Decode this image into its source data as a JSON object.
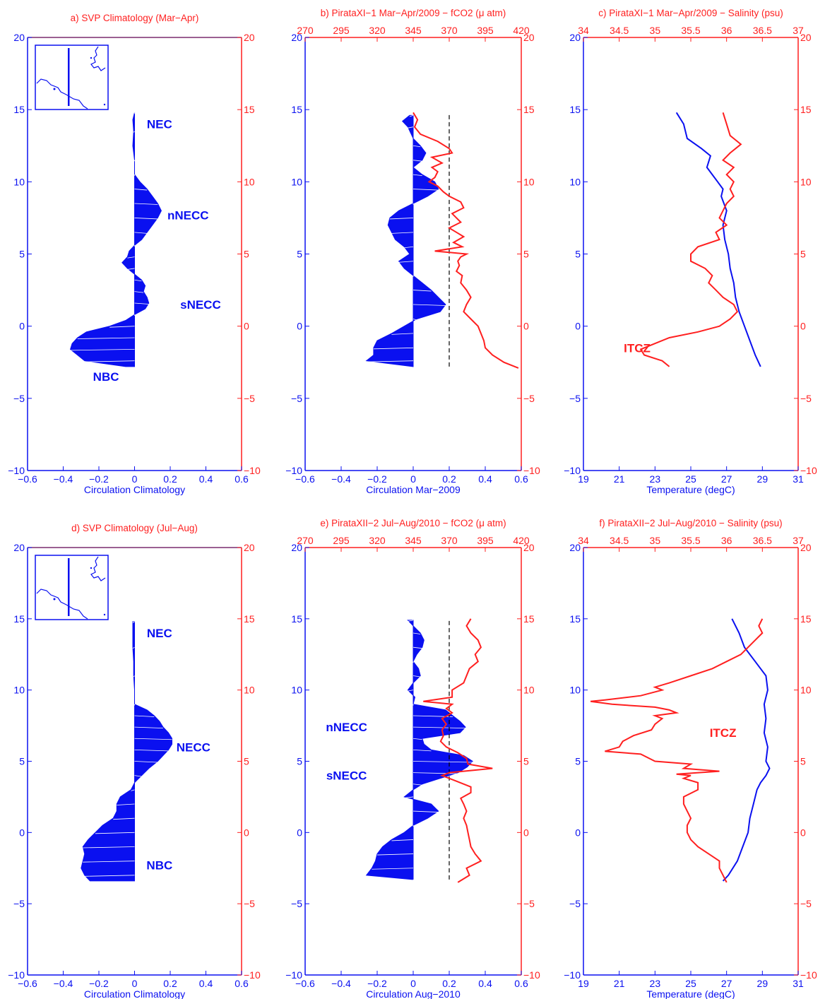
{
  "colors": {
    "blue": "#0a10f0",
    "red": "#ff1f1f",
    "frame": "#7a2b6e",
    "black": "#000000"
  },
  "chart_data": [
    {
      "id": "a",
      "type": "area",
      "title": "a) SVP Climatology (Mar−Apr)",
      "xlabel": "Circulation Climatology",
      "xlim": [
        -0.6,
        0.6
      ],
      "xticks": [
        "−0.6",
        "−0.4",
        "−0.2",
        "0",
        "0.2",
        "0.4",
        "0.6"
      ],
      "ylim": [
        -10,
        20
      ],
      "yticks": [
        "−10",
        "−5",
        "0",
        "5",
        "10",
        "15",
        "20"
      ],
      "inset_map": true,
      "circulation": {
        "lat": [
          14.8,
          14.3,
          13.5,
          12.5,
          11.5,
          11.0,
          10.5,
          10.0,
          9.5,
          9.0,
          8.5,
          8.0,
          7.5,
          7.0,
          6.5,
          6.0,
          5.6,
          5.2,
          4.8,
          4.4,
          4.0,
          3.6,
          3.2,
          2.8,
          2.4,
          2.0,
          1.6,
          1.2,
          0.8,
          0.4,
          0.0,
          -0.4,
          -0.8,
          -1.2,
          -1.6,
          -2.0,
          -2.4,
          -2.8
        ],
        "value": [
          0.0,
          -0.01,
          -0.005,
          -0.01,
          0.0,
          0.0,
          0.0,
          0.03,
          0.07,
          0.1,
          0.13,
          0.15,
          0.13,
          0.1,
          0.07,
          0.04,
          0.0,
          -0.03,
          -0.04,
          -0.07,
          -0.04,
          0.0,
          0.04,
          0.06,
          0.05,
          0.07,
          0.08,
          0.06,
          0.0,
          -0.05,
          -0.14,
          -0.27,
          -0.32,
          -0.35,
          -0.36,
          -0.32,
          -0.28,
          -0.05
        ]
      },
      "annotations": [
        {
          "text": "NEC",
          "x": 0.14,
          "y": 14.0
        },
        {
          "text": "nNECC",
          "x": 0.3,
          "y": 7.7
        },
        {
          "text": "sNECC",
          "x": 0.37,
          "y": 1.5
        },
        {
          "text": "NBC",
          "x": -0.16,
          "y": -3.5
        }
      ]
    },
    {
      "id": "b",
      "type": "area",
      "title": "b) PirataXI−1 Mar−Apr/2009 − fCO2 (μ atm)",
      "xlabel": "Circulation Mar−2009",
      "xlim": [
        -0.6,
        0.6
      ],
      "xticks": [
        "−0.6",
        "−0.4",
        "−0.2",
        "0",
        "0.2",
        "0.4",
        "0.6"
      ],
      "top_xlim": [
        270,
        420
      ],
      "top_xticks": [
        "270",
        "295",
        "320",
        "345",
        "370",
        "395",
        "420"
      ],
      "ylim": [
        -10,
        20
      ],
      "yticks": [
        "−10",
        "−5",
        "0",
        "5",
        "10",
        "15",
        "20"
      ],
      "dashed_x": 370,
      "dashed_yrange": [
        -2.8,
        14.8
      ],
      "circulation": {
        "lat": [
          14.6,
          14.2,
          13.8,
          13.0,
          12.5,
          12.0,
          11.5,
          11.0,
          10.5,
          10.0,
          9.5,
          9.0,
          8.5,
          8.0,
          7.5,
          7.0,
          6.5,
          6.0,
          5.5,
          5.0,
          4.5,
          4.0,
          3.5,
          3.0,
          2.5,
          2.0,
          1.5,
          1.0,
          0.5,
          0.0,
          -0.5,
          -1.0,
          -1.5,
          -2.0,
          -2.4,
          -2.8
        ],
        "value": [
          -0.02,
          -0.06,
          -0.03,
          0.0,
          0.04,
          0.07,
          0.05,
          0.0,
          0.05,
          0.12,
          0.14,
          0.08,
          0.0,
          -0.08,
          -0.13,
          -0.14,
          -0.12,
          -0.1,
          -0.05,
          -0.02,
          -0.08,
          -0.05,
          0.0,
          0.05,
          0.1,
          0.14,
          0.18,
          0.15,
          0.02,
          -0.05,
          -0.12,
          -0.2,
          -0.22,
          -0.22,
          -0.26,
          0.0
        ]
      },
      "fco2": {
        "lat": [
          14.8,
          14.3,
          13.8,
          13.3,
          12.8,
          12.3,
          12.0,
          11.7,
          11.3,
          11.0,
          10.7,
          10.3,
          10.0,
          9.7,
          9.3,
          9.0,
          8.6,
          8.2,
          7.8,
          7.5,
          7.2,
          6.8,
          6.5,
          6.2,
          5.8,
          5.5,
          5.2,
          5.0,
          4.8,
          4.5,
          4.2,
          3.8,
          3.5,
          3.0,
          2.5,
          2.0,
          1.5,
          1.0,
          0.5,
          0.0,
          -0.5,
          -1.0,
          -1.5,
          -2.0,
          -2.5,
          -2.9
        ],
        "value": [
          345,
          348,
          346,
          350,
          362,
          370,
          372,
          358,
          365,
          358,
          362,
          360,
          356,
          362,
          366,
          370,
          378,
          380,
          372,
          375,
          378,
          370,
          375,
          380,
          373,
          379,
          360,
          382,
          378,
          376,
          377,
          375,
          379,
          378,
          382,
          385,
          382,
          380,
          385,
          390,
          392,
          394,
          395,
          400,
          408,
          418
        ]
      }
    },
    {
      "id": "c",
      "type": "line",
      "title": "c) PirataXI−1 Mar−Apr/2009 − Salinity (psu)",
      "xlabel": "Temperature (degC)",
      "xlim": [
        19,
        31
      ],
      "xticks": [
        "19",
        "21",
        "23",
        "25",
        "27",
        "29",
        "31"
      ],
      "top_xlim": [
        34,
        37
      ],
      "top_xticks": [
        "34",
        "34.5",
        "35",
        "35.5",
        "36",
        "36.5",
        "37"
      ],
      "ylim": [
        -10,
        20
      ],
      "yticks": [
        "−10",
        "−5",
        "0",
        "5",
        "10",
        "15",
        "20"
      ],
      "temperature": {
        "lat": [
          14.8,
          14.0,
          13.0,
          12.3,
          11.8,
          11.0,
          10.5,
          10.0,
          9.5,
          9.0,
          8.0,
          7.0,
          6.0,
          5.0,
          4.0,
          3.0,
          2.0,
          1.0,
          0.0,
          -1.0,
          -2.0,
          -2.8
        ],
        "value": [
          24.2,
          24.6,
          24.8,
          25.6,
          26.1,
          25.9,
          26.2,
          26.5,
          26.8,
          26.7,
          27.0,
          26.8,
          26.9,
          27.1,
          27.2,
          27.4,
          27.5,
          27.7,
          28.0,
          28.3,
          28.6,
          28.9
        ]
      },
      "salinity": {
        "lat": [
          14.8,
          14.0,
          13.2,
          12.6,
          12.0,
          11.5,
          11.0,
          10.5,
          10.0,
          9.5,
          9.0,
          8.5,
          8.0,
          7.5,
          7.0,
          6.5,
          6.0,
          5.5,
          5.0,
          4.5,
          4.0,
          3.5,
          3.0,
          2.5,
          2.0,
          1.5,
          1.0,
          0.5,
          0.0,
          -0.4,
          -0.8,
          -1.2,
          -1.6,
          -2.0,
          -2.4,
          -2.8
        ],
        "value": [
          35.95,
          36.0,
          36.05,
          36.2,
          36.05,
          35.95,
          36.1,
          36.0,
          36.1,
          36.05,
          36.1,
          36.0,
          35.95,
          35.9,
          36.0,
          35.85,
          35.9,
          35.6,
          35.5,
          35.5,
          35.7,
          35.8,
          35.75,
          35.85,
          35.95,
          36.1,
          36.15,
          36.05,
          35.9,
          35.6,
          35.2,
          35.0,
          34.8,
          34.85,
          35.1,
          35.2
        ]
      },
      "annotations": [
        {
          "text": "ITCZ",
          "x": 34.75,
          "y": -1.5
        }
      ]
    },
    {
      "id": "d",
      "type": "area",
      "title": "d) SVP Climatology (Jul−Aug)",
      "xlabel": "Circulation Climatology",
      "xlim": [
        -0.6,
        0.6
      ],
      "xticks": [
        "−0.6",
        "−0.4",
        "−0.2",
        "0",
        "0.2",
        "0.4",
        "0.6"
      ],
      "ylim": [
        -10,
        20
      ],
      "yticks": [
        "−10",
        "−5",
        "0",
        "5",
        "10",
        "15",
        "20"
      ],
      "inset_map": true,
      "circulation": {
        "lat": [
          14.8,
          14.0,
          13.0,
          12.0,
          11.0,
          10.0,
          9.0,
          8.6,
          8.2,
          7.8,
          7.4,
          7.0,
          6.6,
          6.2,
          5.8,
          5.4,
          5.0,
          4.5,
          4.0,
          3.5,
          3.0,
          2.5,
          2.0,
          1.5,
          1.0,
          0.5,
          0.0,
          -0.5,
          -1.0,
          -1.5,
          -2.0,
          -2.5,
          -3.0,
          -3.4
        ],
        "value": [
          -0.01,
          -0.01,
          -0.01,
          -0.005,
          -0.005,
          0.0,
          0.0,
          0.07,
          0.11,
          0.14,
          0.16,
          0.19,
          0.21,
          0.21,
          0.19,
          0.16,
          0.13,
          0.08,
          0.04,
          0.0,
          -0.02,
          -0.08,
          -0.1,
          -0.1,
          -0.12,
          -0.18,
          -0.22,
          -0.26,
          -0.29,
          -0.28,
          -0.29,
          -0.3,
          -0.28,
          -0.25
        ]
      },
      "annotations": [
        {
          "text": "NEC",
          "x": 0.14,
          "y": 14.0
        },
        {
          "text": "NECC",
          "x": 0.33,
          "y": 6.0
        },
        {
          "text": "NBC",
          "x": 0.14,
          "y": -2.3
        }
      ]
    },
    {
      "id": "e",
      "type": "area",
      "title": "e) PirataXII−2 Jul−Aug/2010 − fCO2 (μ atm)",
      "xlabel": "Circulation Aug−2010",
      "xlim": [
        -0.6,
        0.6
      ],
      "xticks": [
        "−0.6",
        "−0.4",
        "−0.2",
        "0",
        "0.2",
        "0.4",
        "0.6"
      ],
      "top_xlim": [
        270,
        420
      ],
      "top_xticks": [
        "270",
        "295",
        "320",
        "345",
        "370",
        "395",
        "420"
      ],
      "ylim": [
        -10,
        20
      ],
      "yticks": [
        "−10",
        "−5",
        "0",
        "5",
        "10",
        "15",
        "20"
      ],
      "dashed_x": 370,
      "dashed_yrange": [
        -3.3,
        14.9
      ],
      "circulation": {
        "lat": [
          14.9,
          14.5,
          14.0,
          13.5,
          13.0,
          12.5,
          12.0,
          11.5,
          11.0,
          10.5,
          10.0,
          9.5,
          9.0,
          8.6,
          8.2,
          7.8,
          7.4,
          7.0,
          6.6,
          6.2,
          5.8,
          5.4,
          5.0,
          4.6,
          4.2,
          3.8,
          3.4,
          3.0,
          2.5,
          2.0,
          1.5,
          1.0,
          0.5,
          0.0,
          -0.5,
          -1.0,
          -1.5,
          -2.0,
          -2.5,
          -3.0,
          -3.3
        ],
        "value": [
          -0.03,
          0.0,
          0.04,
          0.06,
          0.05,
          0.02,
          0.0,
          0.03,
          0.04,
          0.0,
          -0.03,
          0.01,
          0.0,
          0.18,
          0.22,
          0.26,
          0.29,
          0.26,
          0.05,
          0.06,
          0.1,
          0.28,
          0.33,
          0.3,
          0.25,
          0.15,
          0.05,
          0.0,
          -0.05,
          0.1,
          0.14,
          0.08,
          0.0,
          -0.05,
          -0.12,
          -0.17,
          -0.2,
          -0.21,
          -0.23,
          -0.26,
          0.0
        ]
      },
      "fco2": {
        "lat": [
          15.0,
          14.5,
          14.0,
          13.5,
          13.0,
          12.5,
          12.0,
          11.5,
          11.0,
          10.5,
          10.0,
          9.5,
          9.2,
          9.0,
          8.7,
          8.4,
          8.0,
          7.6,
          7.2,
          6.8,
          6.4,
          6.0,
          5.6,
          5.2,
          4.8,
          4.5,
          4.2,
          4.0,
          3.6,
          3.2,
          2.8,
          2.4,
          2.0,
          1.5,
          1.0,
          0.5,
          0.0,
          -0.5,
          -1.0,
          -1.5,
          -2.0,
          -2.5,
          -3.0,
          -3.5
        ],
        "value": [
          385,
          382,
          385,
          390,
          392,
          388,
          390,
          384,
          382,
          380,
          372,
          372,
          352,
          372,
          368,
          372,
          365,
          368,
          365,
          366,
          364,
          368,
          376,
          382,
          383,
          400,
          370,
          365,
          375,
          385,
          385,
          378,
          380,
          382,
          380,
          382,
          383,
          384,
          385,
          388,
          392,
          382,
          384,
          376
        ]
      },
      "annotations": [
        {
          "text": "nNECC",
          "x": -0.37,
          "y": 7.4
        },
        {
          "text": "sNECC",
          "x": -0.37,
          "y": 4.0
        }
      ]
    },
    {
      "id": "f",
      "type": "line",
      "title": "f) PirataXII−2 Jul−Aug/2010 − Salinity (psu)",
      "xlabel": "Temperature (degC)",
      "xlim": [
        19,
        31
      ],
      "xticks": [
        "19",
        "21",
        "23",
        "25",
        "27",
        "29",
        "31"
      ],
      "top_xlim": [
        34,
        37
      ],
      "top_xticks": [
        "34",
        "34.5",
        "35",
        "35.5",
        "36",
        "36.5",
        "37"
      ],
      "ylim": [
        -10,
        20
      ],
      "yticks": [
        "−10",
        "−5",
        "0",
        "5",
        "10",
        "15",
        "20"
      ],
      "temperature": {
        "lat": [
          15.0,
          14.0,
          13.0,
          12.0,
          11.0,
          10.0,
          9.0,
          8.0,
          7.0,
          6.0,
          5.0,
          4.5,
          4.0,
          3.5,
          3.0,
          2.0,
          1.0,
          0.0,
          -1.0,
          -2.0,
          -3.0,
          -3.4
        ],
        "value": [
          27.3,
          27.7,
          28.0,
          28.6,
          29.2,
          29.3,
          29.1,
          29.2,
          29.1,
          29.3,
          29.2,
          29.4,
          29.2,
          28.9,
          28.7,
          28.5,
          28.3,
          28.2,
          27.9,
          27.6,
          27.1,
          26.8
        ]
      },
      "salinity": {
        "lat": [
          15.0,
          14.5,
          14.0,
          13.5,
          13.0,
          12.5,
          12.0,
          11.5,
          11.0,
          10.5,
          10.2,
          10.0,
          9.6,
          9.3,
          9.2,
          9.0,
          8.8,
          8.6,
          8.4,
          8.2,
          8.0,
          7.6,
          7.2,
          6.8,
          6.4,
          6.0,
          5.7,
          5.5,
          5.0,
          4.8,
          4.5,
          4.3,
          4.1,
          4.0,
          3.8,
          3.5,
          3.0,
          2.5,
          2.0,
          1.5,
          1.0,
          0.5,
          0.0,
          -0.5,
          -1.0,
          -1.5,
          -2.0,
          -2.5,
          -3.0,
          -3.5
        ],
        "value": [
          36.5,
          36.45,
          36.5,
          36.4,
          36.3,
          36.2,
          36.0,
          35.8,
          35.5,
          35.2,
          35.0,
          35.1,
          34.8,
          34.3,
          34.1,
          34.4,
          35.0,
          35.2,
          35.3,
          35.0,
          35.1,
          35.0,
          34.95,
          34.7,
          34.55,
          34.5,
          34.3,
          34.8,
          35.0,
          35.5,
          35.4,
          35.9,
          35.3,
          35.5,
          35.4,
          35.6,
          35.6,
          35.4,
          35.4,
          35.45,
          35.5,
          35.45,
          35.45,
          35.5,
          35.6,
          35.75,
          35.9,
          35.9,
          35.95,
          36.0
        ]
      },
      "annotations": [
        {
          "text": "ITCZ",
          "x": 35.95,
          "y": 7.0
        }
      ]
    }
  ]
}
